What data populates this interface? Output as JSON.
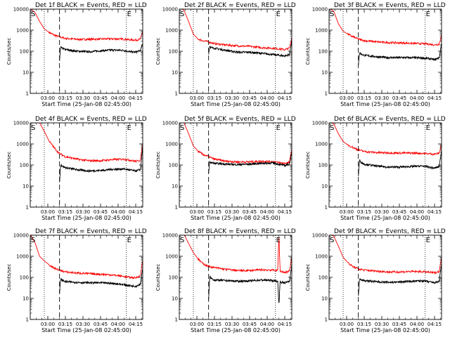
{
  "figure": {
    "x_tick_labels": [
      "03:00",
      "03:15",
      "03:30",
      "03:45",
      "04:00",
      "04:15"
    ],
    "y_tick_labels": [
      "1",
      "10",
      "100",
      "1000",
      "10000"
    ],
    "xlabel": "Start Time (25-Jan-08 02:45:00)",
    "ylabel": "Counts/sec",
    "start_marker": "S",
    "end_marker": "E",
    "colors": {
      "events": "#000000",
      "lld": "#ff0000",
      "axes": "#000000"
    }
  },
  "chart_data": [
    {
      "type": "line",
      "title": "Det 1f BLACK = Events, RED = LLD",
      "xlabel": "Start Time (25-Jan-08 02:45:00)",
      "ylabel": "Counts/sec",
      "x_unit": "minutes after 02:45",
      "xlim": [
        0,
        96
      ],
      "ylim": [
        1,
        10000
      ],
      "y_scale": "log",
      "x_ticks": [
        15,
        30,
        45,
        60,
        75,
        90
      ],
      "markers": {
        "dotted": [
          12,
          82
        ],
        "dashed": 25
      },
      "series": [
        {
          "x": [
            0,
            4,
            8,
            12,
            16,
            20,
            25,
            30,
            40,
            50,
            60,
            70,
            80,
            85,
            90,
            94,
            96
          ],
          "values": [
            11000,
            7000,
            2600,
            1150,
            800,
            600,
            480,
            410,
            370,
            370,
            380,
            390,
            380,
            350,
            340,
            380,
            900
          ]
        },
        {
          "x": [
            25,
            26,
            27,
            30,
            40,
            50,
            60,
            70,
            80,
            85,
            90,
            94,
            96
          ],
          "values": [
            35,
            160,
            140,
            120,
            100,
            95,
            105,
            115,
            110,
            95,
            90,
            110,
            220
          ]
        }
      ]
    },
    {
      "type": "line",
      "title": "Det 2f BLACK = Events, RED = LLD",
      "xlabel": "Start Time (25-Jan-08 02:45:00)",
      "ylabel": "Counts/sec",
      "x_unit": "minutes after 02:45",
      "xlim": [
        0,
        96
      ],
      "ylim": [
        1,
        10000
      ],
      "y_scale": "log",
      "x_ticks": [
        15,
        30,
        45,
        60,
        75,
        90
      ],
      "markers": {
        "dotted": [
          12,
          82
        ],
        "dashed": 25
      },
      "series": [
        {
          "x": [
            0,
            4,
            8,
            12,
            16,
            20,
            25,
            30,
            40,
            50,
            60,
            70,
            80,
            85,
            90,
            94,
            96
          ],
          "values": [
            11000,
            9000,
            2500,
            650,
            380,
            320,
            280,
            230,
            200,
            180,
            170,
            150,
            140,
            130,
            120,
            140,
            450
          ]
        },
        {
          "x": [
            25,
            26,
            27,
            30,
            40,
            50,
            60,
            70,
            80,
            85,
            90,
            94,
            96
          ],
          "values": [
            70,
            180,
            150,
            140,
            110,
            90,
            90,
            80,
            70,
            65,
            60,
            70,
            320
          ]
        }
      ]
    },
    {
      "type": "line",
      "title": "Det 3f BLACK = Events, RED = LLD",
      "xlabel": "Start Time (25-Jan-08 02:45:00)",
      "ylabel": "Counts/sec",
      "x_unit": "minutes after 02:45",
      "xlim": [
        0,
        96
      ],
      "ylim": [
        1,
        10000
      ],
      "y_scale": "log",
      "x_ticks": [
        15,
        30,
        45,
        60,
        75,
        90
      ],
      "markers": {
        "dotted": [
          12,
          82
        ],
        "dashed": 25
      },
      "series": [
        {
          "x": [
            0,
            4,
            8,
            12,
            16,
            20,
            25,
            30,
            40,
            50,
            60,
            70,
            80,
            85,
            90,
            94,
            96
          ],
          "values": [
            11000,
            8000,
            2000,
            900,
            650,
            500,
            380,
            320,
            280,
            260,
            250,
            240,
            230,
            220,
            200,
            220,
            600
          ]
        },
        {
          "x": [
            25,
            26,
            27,
            30,
            40,
            50,
            60,
            70,
            80,
            85,
            90,
            94,
            96
          ],
          "values": [
            20,
            90,
            75,
            65,
            55,
            50,
            50,
            50,
            48,
            45,
            40,
            50,
            250
          ]
        }
      ]
    },
    {
      "type": "line",
      "title": "Det 4f BLACK = Events, RED = LLD",
      "xlabel": "Start Time (25-Jan-08 02:45:00)",
      "ylabel": "Counts/sec",
      "x_unit": "minutes after 02:45",
      "xlim": [
        0,
        96
      ],
      "ylim": [
        1,
        10000
      ],
      "y_scale": "log",
      "x_ticks": [
        15,
        30,
        45,
        60,
        75,
        90
      ],
      "markers": {
        "dotted": [
          12,
          82
        ],
        "dashed": 25
      },
      "series": [
        {
          "x": [
            0,
            4,
            8,
            12,
            16,
            20,
            25,
            30,
            40,
            50,
            60,
            70,
            80,
            85,
            90,
            94,
            96
          ],
          "values": [
            11000,
            10000,
            10000,
            4000,
            1400,
            700,
            350,
            250,
            190,
            160,
            160,
            180,
            190,
            170,
            150,
            170,
            1100
          ]
        },
        {
          "x": [
            25,
            26,
            27,
            30,
            40,
            50,
            60,
            70,
            80,
            85,
            90,
            94,
            96
          ],
          "values": [
            15,
            110,
            90,
            75,
            60,
            52,
            55,
            62,
            65,
            58,
            52,
            60,
            700
          ]
        }
      ]
    },
    {
      "type": "line",
      "title": "Det 5f BLACK = Events, RED = LLD",
      "xlabel": "Start Time (25-Jan-08 02:45:00)",
      "ylabel": "Counts/sec",
      "x_unit": "minutes after 02:45",
      "xlim": [
        0,
        96
      ],
      "ylim": [
        1,
        10000
      ],
      "y_scale": "log",
      "x_ticks": [
        15,
        30,
        45,
        60,
        75,
        90
      ],
      "markers": {
        "dotted": [
          12,
          82
        ],
        "dashed": 25
      },
      "series": [
        {
          "x": [
            0,
            4,
            8,
            12,
            16,
            20,
            25,
            30,
            40,
            50,
            60,
            70,
            80,
            85,
            90,
            94,
            96
          ],
          "values": [
            11000,
            10000,
            3000,
            800,
            450,
            320,
            250,
            190,
            150,
            140,
            140,
            150,
            145,
            130,
            120,
            130,
            600
          ]
        },
        {
          "x": [
            25,
            26,
            27,
            30,
            40,
            50,
            60,
            70,
            80,
            85,
            90,
            94,
            96
          ],
          "values": [
            40,
            140,
            130,
            120,
            110,
            105,
            110,
            120,
            125,
            110,
            95,
            110,
            380
          ]
        }
      ]
    },
    {
      "type": "line",
      "title": "Det 6f BLACK = Events, RED = LLD",
      "xlabel": "Start Time (25-Jan-08 02:45:00)",
      "ylabel": "Counts/sec",
      "x_unit": "minutes after 02:45",
      "xlim": [
        0,
        96
      ],
      "ylim": [
        1,
        10000
      ],
      "y_scale": "log",
      "x_ticks": [
        15,
        30,
        45,
        60,
        75,
        90
      ],
      "markers": {
        "dotted": [
          12,
          82
        ],
        "dashed": 25
      },
      "series": [
        {
          "x": [
            0,
            4,
            8,
            12,
            16,
            20,
            25,
            30,
            40,
            50,
            60,
            70,
            80,
            85,
            90,
            94,
            96
          ],
          "values": [
            11000,
            9000,
            3000,
            1300,
            900,
            700,
            520,
            440,
            390,
            380,
            370,
            370,
            360,
            340,
            330,
            360,
            1000
          ]
        },
        {
          "x": [
            25,
            26,
            27,
            30,
            40,
            50,
            60,
            70,
            80,
            85,
            90,
            94,
            96
          ],
          "values": [
            30,
            170,
            140,
            110,
            90,
            80,
            80,
            85,
            90,
            80,
            70,
            85,
            500
          ]
        }
      ]
    },
    {
      "type": "line",
      "title": "Det 7f BLACK = Events, RED = LLD",
      "xlabel": "Start Time (25-Jan-08 02:45:00)",
      "ylabel": "Counts/sec",
      "x_unit": "minutes after 02:45",
      "xlim": [
        0,
        96
      ],
      "ylim": [
        1,
        10000
      ],
      "y_scale": "log",
      "x_ticks": [
        15,
        30,
        45,
        60,
        75,
        90
      ],
      "markers": {
        "dotted": [
          12,
          82
        ],
        "dashed": 25
      },
      "series": [
        {
          "x": [
            0,
            4,
            8,
            12,
            16,
            20,
            25,
            30,
            40,
            50,
            60,
            70,
            80,
            85,
            90,
            94,
            96
          ],
          "values": [
            11000,
            4500,
            1000,
            600,
            400,
            280,
            220,
            180,
            160,
            150,
            140,
            130,
            110,
            100,
            95,
            120,
            700
          ]
        },
        {
          "x": [
            25,
            26,
            27,
            30,
            40,
            50,
            60,
            70,
            80,
            85,
            90,
            94,
            96
          ],
          "values": [
            18,
            85,
            75,
            62,
            58,
            55,
            55,
            52,
            45,
            40,
            38,
            48,
            280
          ]
        }
      ]
    },
    {
      "type": "line",
      "title": "Det 8f BLACK = Events, RED = LLD",
      "xlabel": "Start Time (25-Jan-08 02:45:00)",
      "ylabel": "Counts/sec",
      "x_unit": "minutes after 02:45",
      "xlim": [
        0,
        96
      ],
      "ylim": [
        1,
        10000
      ],
      "y_scale": "log",
      "x_ticks": [
        15,
        30,
        45,
        60,
        75,
        90
      ],
      "markers": {
        "dotted": [
          12,
          82
        ],
        "dashed": 25
      },
      "series": [
        {
          "x": [
            0,
            4,
            8,
            12,
            16,
            20,
            25,
            30,
            40,
            50,
            60,
            70,
            80,
            84,
            85,
            86,
            90,
            94,
            96
          ],
          "values": [
            11000,
            11000,
            4000,
            1500,
            750,
            450,
            330,
            290,
            240,
            210,
            210,
            230,
            220,
            210,
            11000,
            200,
            170,
            200,
            850
          ]
        },
        {
          "x": [
            25,
            26,
            27,
            30,
            40,
            50,
            60,
            70,
            80,
            84,
            85,
            86,
            90,
            94,
            96
          ],
          "values": [
            8,
            110,
            90,
            75,
            70,
            65,
            68,
            75,
            70,
            65,
            5,
            60,
            55,
            65,
            400
          ]
        }
      ]
    },
    {
      "type": "line",
      "title": "Det 9f BLACK = Events, RED = LLD",
      "xlabel": "Start Time (25-Jan-08 02:45:00)",
      "ylabel": "Counts/sec",
      "x_unit": "minutes after 02:45",
      "xlim": [
        0,
        96
      ],
      "ylim": [
        1,
        10000
      ],
      "y_scale": "log",
      "x_ticks": [
        15,
        30,
        45,
        60,
        75,
        90
      ],
      "markers": {
        "dotted": [
          12,
          82
        ],
        "dashed": 25
      },
      "series": [
        {
          "x": [
            0,
            4,
            8,
            12,
            16,
            20,
            25,
            30,
            40,
            50,
            60,
            70,
            80,
            85,
            90,
            94,
            96
          ],
          "values": [
            11000,
            9000,
            3000,
            900,
            500,
            330,
            250,
            220,
            200,
            180,
            180,
            190,
            185,
            175,
            165,
            190,
            900
          ]
        },
        {
          "x": [
            25,
            26,
            27,
            30,
            40,
            50,
            60,
            70,
            80,
            85,
            90,
            94,
            96
          ],
          "values": [
            12,
            90,
            80,
            70,
            62,
            58,
            60,
            65,
            68,
            62,
            55,
            65,
            450
          ]
        }
      ]
    }
  ]
}
